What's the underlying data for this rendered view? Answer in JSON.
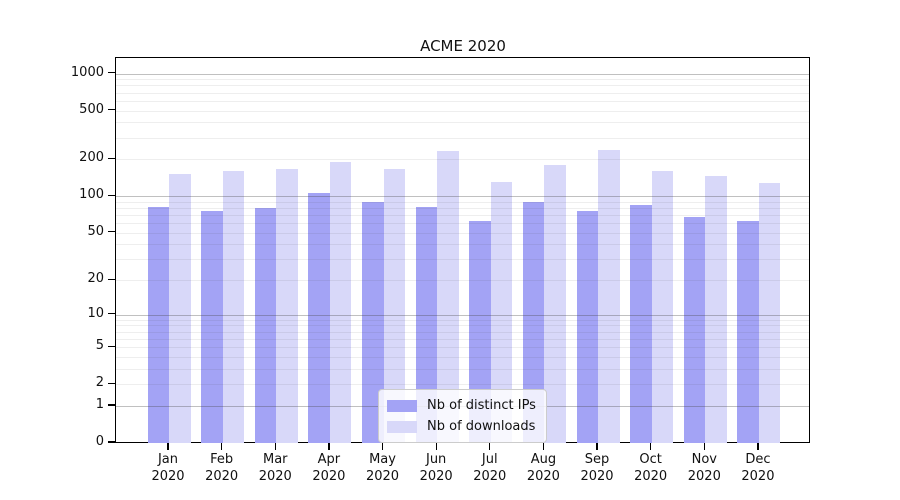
{
  "title": "ACME 2020",
  "colors": {
    "distinct_ips": "#a3a3f5",
    "downloads": "#d8d8f9",
    "grid_major": "#b3b3b3",
    "grid_minor": "#e9e9e9",
    "axis": "#000000"
  },
  "legend": {
    "items": [
      {
        "label": "Nb of distinct IPs",
        "series_key": "distinct_ips"
      },
      {
        "label": "Nb of downloads",
        "series_key": "downloads"
      }
    ]
  },
  "chart_data": {
    "type": "bar",
    "title": "ACME 2020",
    "categories": [
      "Jan 2020",
      "Feb 2020",
      "Mar 2020",
      "Apr 2020",
      "May 2020",
      "Jun 2020",
      "Jul 2020",
      "Aug 2020",
      "Sep 2020",
      "Oct 2020",
      "Nov 2020",
      "Dec 2020"
    ],
    "x_tick_line1": [
      "Jan",
      "Feb",
      "Mar",
      "Apr",
      "May",
      "Jun",
      "Jul",
      "Aug",
      "Sep",
      "Oct",
      "Nov",
      "Dec"
    ],
    "x_tick_line2": [
      "2020",
      "2020",
      "2020",
      "2020",
      "2020",
      "2020",
      "2020",
      "2020",
      "2020",
      "2020",
      "2020",
      "2020"
    ],
    "series": [
      {
        "name": "Nb of distinct IPs",
        "key": "distinct_ips",
        "color": "#a3a3f5",
        "values": [
          81,
          75,
          80,
          107,
          90,
          82,
          63,
          89,
          76,
          84,
          68,
          63
        ]
      },
      {
        "name": "Nb of downloads",
        "key": "downloads",
        "color": "#d8d8f9",
        "values": [
          151,
          161,
          168,
          192,
          167,
          235,
          130,
          180,
          238,
          162,
          147,
          127
        ]
      }
    ],
    "ylabel": "",
    "xlabel": "",
    "yscale": "log1p",
    "ylim": [
      0,
      1000
    ],
    "yticks": [
      0,
      1,
      2,
      5,
      10,
      20,
      50,
      100,
      200,
      500,
      1000
    ],
    "grid_major_at": [
      1,
      10,
      100,
      1000
    ],
    "grid": true,
    "legend_position": "lower center"
  }
}
